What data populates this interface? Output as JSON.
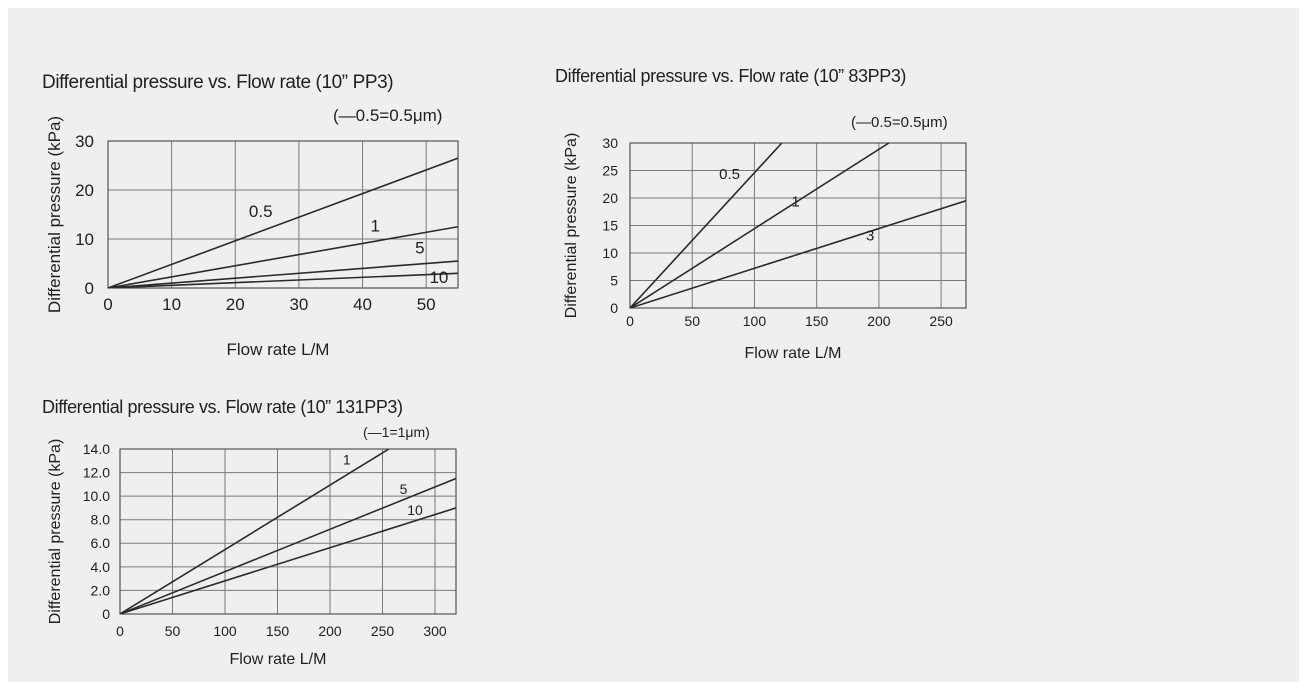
{
  "colors": {
    "background": "#efefef",
    "line": "#2a2a2a",
    "grid": "#7a7a7a"
  },
  "chart_data": [
    {
      "type": "line",
      "title": "Differential pressure vs. Flow rate (10” PP3)",
      "legend_note": "(—0.5=0.5μm)",
      "xlabel": "Flow rate L/M",
      "ylabel": "Differential pressure (kPa)",
      "xlim": [
        0,
        55
      ],
      "ylim": [
        0,
        30
      ],
      "xticks": [
        0,
        10,
        20,
        30,
        40,
        50
      ],
      "yticks": [
        0,
        10,
        20,
        30
      ],
      "xtick_labels": [
        "0",
        "10",
        "20",
        "30",
        "40",
        "50"
      ],
      "ytick_labels": [
        "0",
        "10",
        "20",
        "30"
      ],
      "grid": true,
      "series": [
        {
          "name": "0.5",
          "x": [
            0,
            55
          ],
          "y": [
            0,
            26.5
          ],
          "label_at": [
            24,
            14.5
          ]
        },
        {
          "name": "1",
          "x": [
            0,
            55
          ],
          "y": [
            0,
            12.5
          ],
          "label_at": [
            42,
            11.5
          ]
        },
        {
          "name": "5",
          "x": [
            0,
            55
          ],
          "y": [
            0,
            5.5
          ],
          "label_at": [
            49,
            7.0
          ]
        },
        {
          "name": "10",
          "x": [
            0,
            55
          ],
          "y": [
            0,
            3.0
          ],
          "label_at": [
            52,
            1.0
          ]
        }
      ]
    },
    {
      "type": "line",
      "title": "Differential pressure vs. Flow rate (10” 83PP3)",
      "legend_note": "(—0.5=0.5μm)",
      "xlabel": "Flow rate L/M",
      "ylabel": "Differential pressure (kPa)",
      "xlim": [
        0,
        270
      ],
      "ylim": [
        0,
        30
      ],
      "xticks": [
        0,
        50,
        100,
        150,
        200,
        250
      ],
      "yticks": [
        0,
        5,
        10,
        15,
        20,
        25,
        30
      ],
      "xtick_labels": [
        "0",
        "50",
        "100",
        "150",
        "200",
        "250"
      ],
      "ytick_labels": [
        "0",
        "5",
        "10",
        "15",
        "20",
        "25",
        "30"
      ],
      "grid": true,
      "series": [
        {
          "name": "0.5",
          "x": [
            0,
            122
          ],
          "y": [
            0,
            30
          ],
          "label_at": [
            80,
            23.5
          ]
        },
        {
          "name": "1",
          "x": [
            0,
            208
          ],
          "y": [
            0,
            30
          ],
          "label_at": [
            133,
            18.5
          ]
        },
        {
          "name": "3",
          "x": [
            0,
            270
          ],
          "y": [
            0,
            19.5
          ],
          "label_at": [
            193,
            12.3
          ]
        }
      ]
    },
    {
      "type": "line",
      "title": "Differential pressure vs. Flow rate (10” 131PP3)",
      "legend_note": "(—1=1μm)",
      "xlabel": "Flow rate L/M",
      "ylabel": "Differential pressure (kPa)",
      "xlim": [
        0,
        320
      ],
      "ylim": [
        0,
        14
      ],
      "xticks": [
        0,
        50,
        100,
        150,
        200,
        250,
        300
      ],
      "yticks": [
        0,
        2,
        4,
        6,
        8,
        10,
        12,
        14
      ],
      "xtick_labels": [
        "0",
        "50",
        "100",
        "150",
        "200",
        "250",
        "300"
      ],
      "ytick_labels": [
        "0",
        "2.0",
        "4.0",
        "6.0",
        "8.0",
        "10.0",
        "12.0",
        "14.0"
      ],
      "grid": true,
      "series": [
        {
          "name": "1",
          "x": [
            0,
            256
          ],
          "y": [
            0,
            14
          ],
          "label_at": [
            216,
            12.7
          ]
        },
        {
          "name": "5",
          "x": [
            0,
            320
          ],
          "y": [
            0,
            11.5
          ],
          "label_at": [
            270,
            10.2
          ]
        },
        {
          "name": "10",
          "x": [
            0,
            320
          ],
          "y": [
            0,
            9.0
          ],
          "label_at": [
            281,
            8.4
          ]
        }
      ]
    }
  ]
}
